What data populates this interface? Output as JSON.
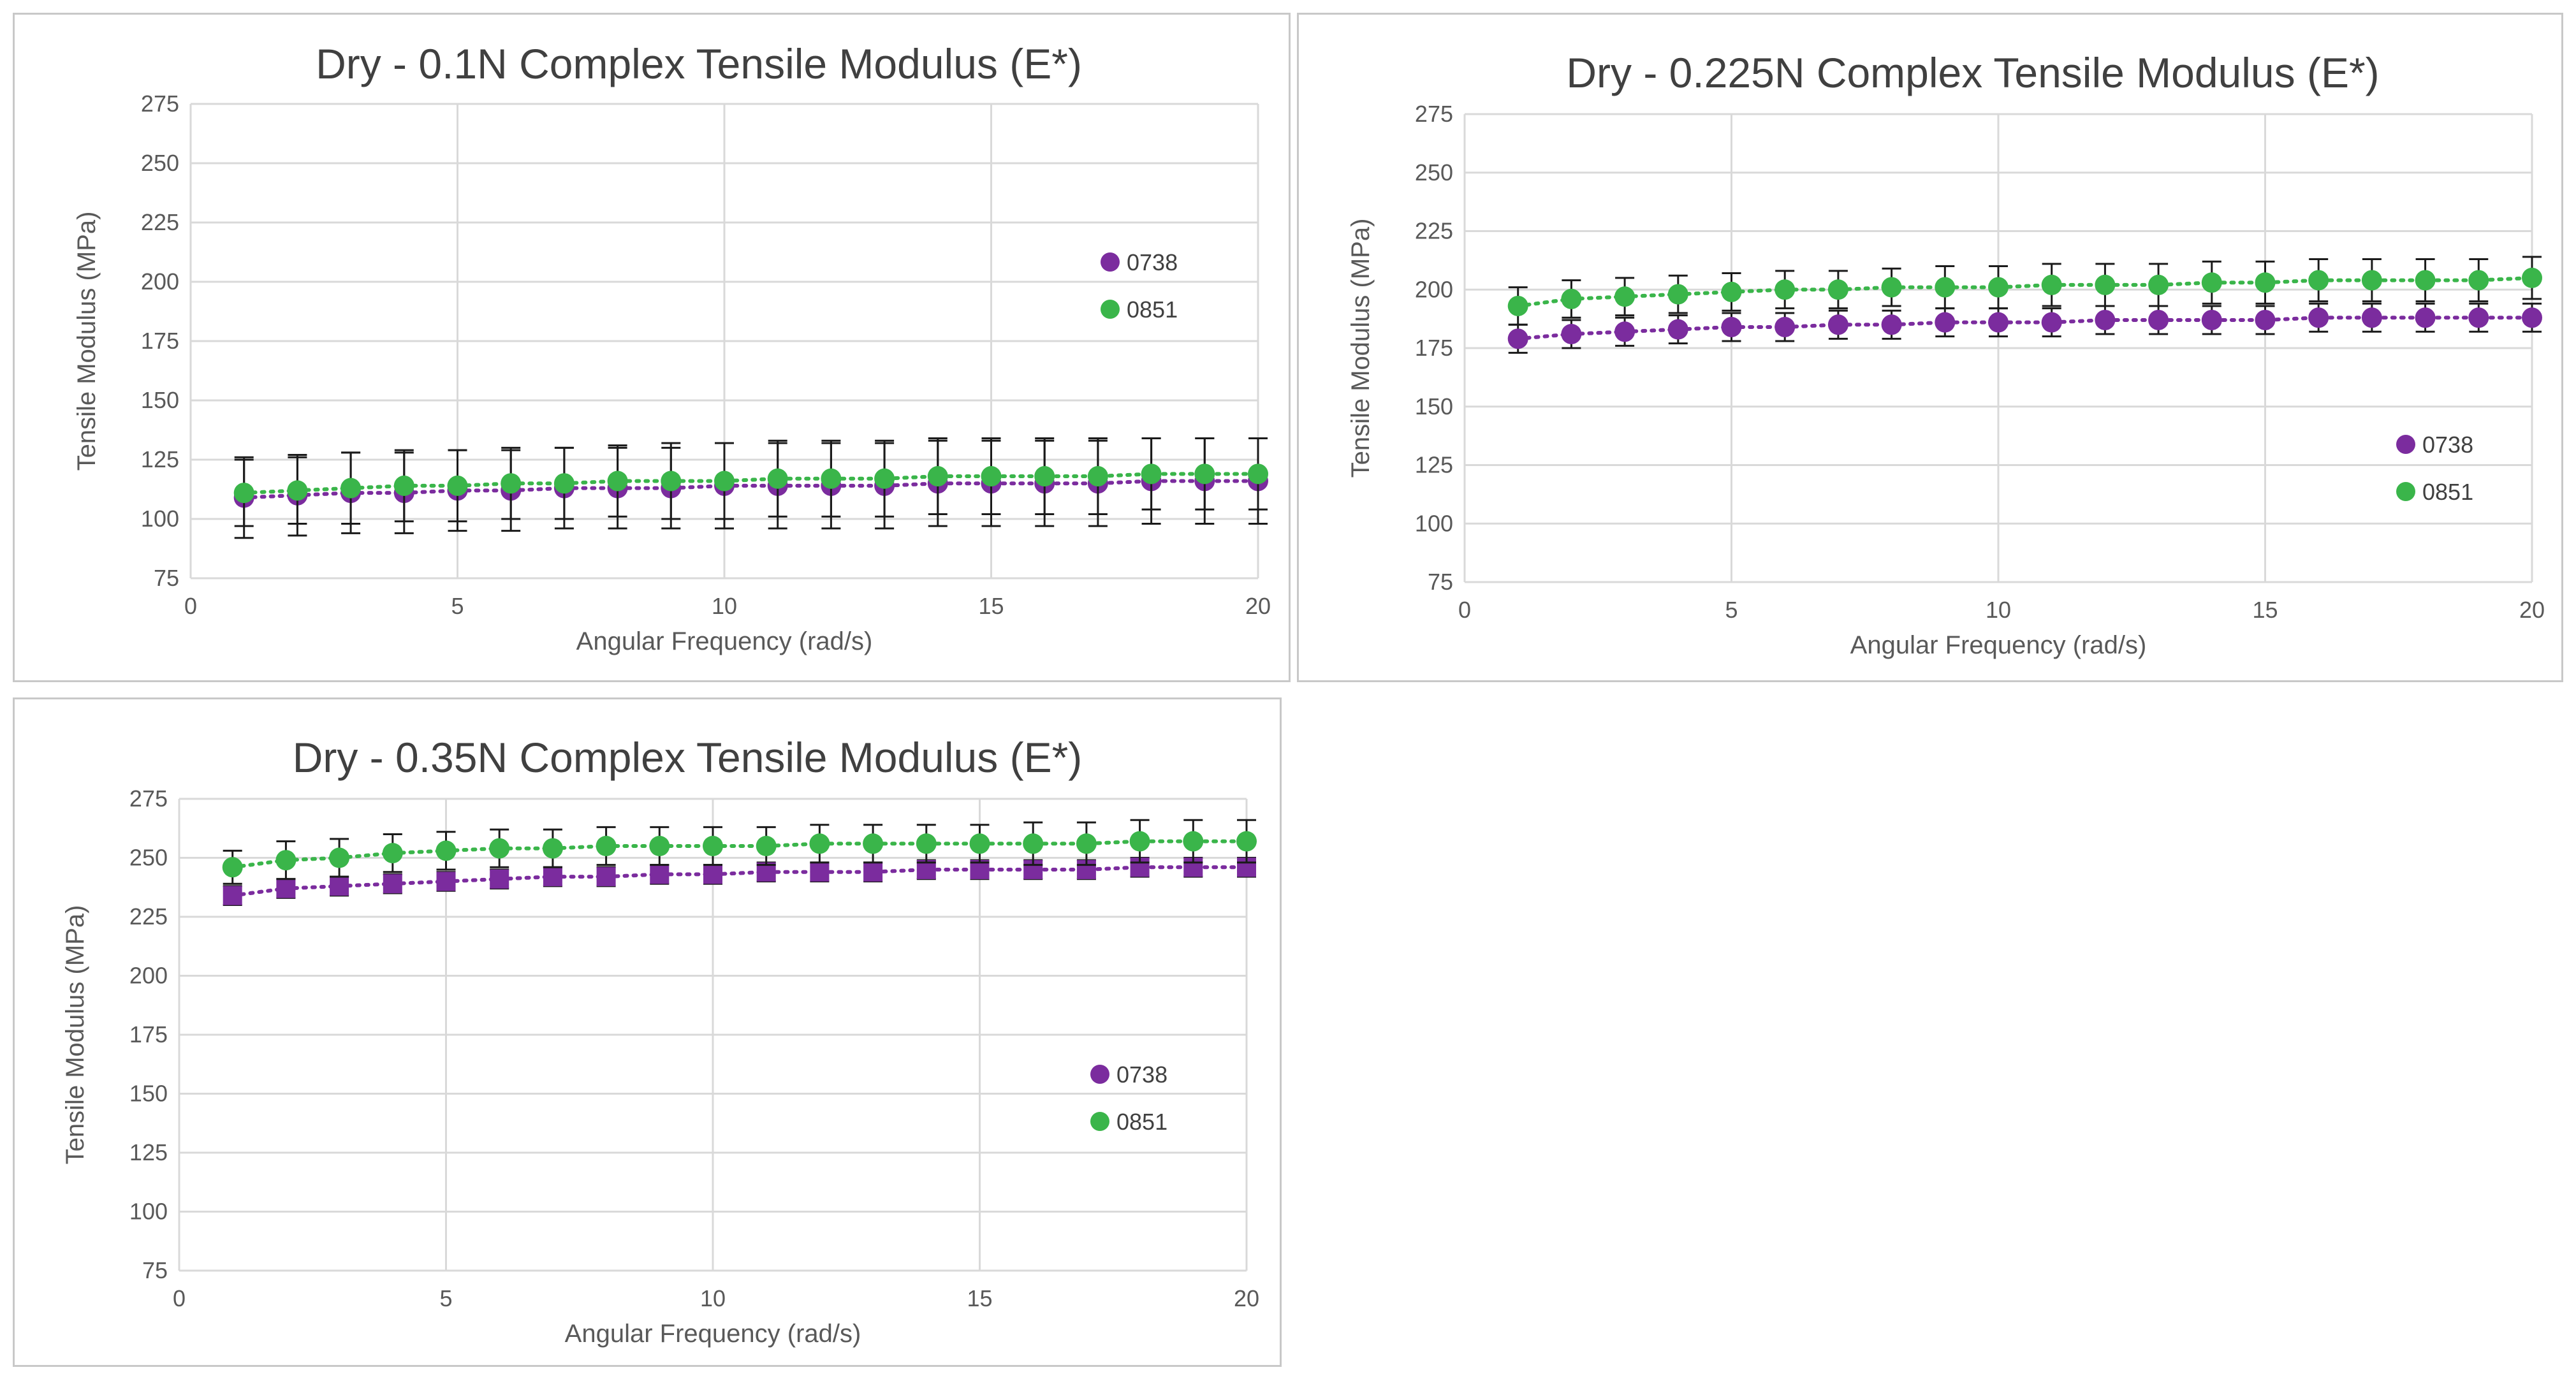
{
  "colors": {
    "s0738": "#7b2c9e",
    "s0851": "#3ab54a",
    "grid": "#d9d9d9",
    "err": "#1a1a1a"
  },
  "charts": [
    {
      "type": "scatter",
      "title": "Dry - 0.1N Complex Tensile Modulus (E*)",
      "xlabel": "Angular Frequency (rad/s)",
      "ylabel": "Tensile Modulus (MPa)",
      "xlim": [
        0,
        20
      ],
      "ylim": [
        75,
        275
      ],
      "xticks": [
        0,
        5,
        10,
        15,
        20
      ],
      "yticks": [
        75,
        100,
        125,
        150,
        175,
        200,
        225,
        250,
        275
      ],
      "legend_position": "right-middle",
      "x": [
        1,
        2,
        3,
        4,
        5,
        6,
        7,
        8,
        9,
        10,
        11,
        12,
        13,
        14,
        15,
        16,
        17,
        18,
        19,
        20
      ],
      "series": [
        {
          "name": "0738",
          "marker": "circle",
          "values": [
            109,
            110,
            111,
            111,
            112,
            112,
            113,
            113,
            113,
            114,
            114,
            114,
            114,
            115,
            115,
            115,
            115,
            116,
            116,
            116
          ],
          "error": [
            17,
            17,
            17,
            17,
            17,
            17,
            17,
            17,
            17,
            18,
            18,
            18,
            18,
            18,
            18,
            18,
            18,
            18,
            18,
            18
          ]
        },
        {
          "name": "0851",
          "marker": "circle",
          "values": [
            111,
            112,
            113,
            114,
            114,
            115,
            115,
            116,
            116,
            116,
            117,
            117,
            117,
            118,
            118,
            118,
            118,
            119,
            119,
            119
          ],
          "error": [
            14,
            14,
            15,
            15,
            15,
            15,
            15,
            15,
            16,
            16,
            16,
            16,
            16,
            16,
            16,
            16,
            16,
            15,
            15,
            15
          ]
        }
      ]
    },
    {
      "type": "scatter",
      "title": "Dry - 0.225N Complex Tensile Modulus (E*)",
      "xlabel": "Angular Frequency (rad/s)",
      "ylabel": "Tensile Modulus (MPa)",
      "xlim": [
        0,
        20
      ],
      "ylim": [
        75,
        275
      ],
      "xticks": [
        0,
        5,
        10,
        15,
        20
      ],
      "yticks": [
        75,
        100,
        125,
        150,
        175,
        200,
        225,
        250,
        275
      ],
      "legend_position": "right-bottom",
      "x": [
        1,
        2,
        3,
        4,
        5,
        6,
        7,
        8,
        9,
        10,
        11,
        12,
        13,
        14,
        15,
        16,
        17,
        18,
        19,
        20
      ],
      "series": [
        {
          "name": "0738",
          "marker": "circle",
          "values": [
            179,
            181,
            182,
            183,
            184,
            184,
            185,
            185,
            186,
            186,
            186,
            187,
            187,
            187,
            187,
            188,
            188,
            188,
            188,
            188
          ],
          "error": [
            6,
            6,
            6,
            6,
            6,
            6,
            6,
            6,
            6,
            6,
            6,
            6,
            6,
            6,
            6,
            6,
            6,
            6,
            6,
            6
          ]
        },
        {
          "name": "0851",
          "marker": "circle",
          "values": [
            193,
            196,
            197,
            198,
            199,
            200,
            200,
            201,
            201,
            201,
            202,
            202,
            202,
            203,
            203,
            204,
            204,
            204,
            204,
            205
          ],
          "error": [
            8,
            8,
            8,
            8,
            8,
            8,
            8,
            8,
            9,
            9,
            9,
            9,
            9,
            9,
            9,
            9,
            9,
            9,
            9,
            9
          ]
        }
      ]
    },
    {
      "type": "scatter",
      "title": "Dry - 0.35N Complex Tensile Modulus (E*)",
      "xlabel": "Angular Frequency (rad/s)",
      "ylabel": "Tensile Modulus (MPa)",
      "xlim": [
        0,
        20
      ],
      "ylim": [
        75,
        275
      ],
      "xticks": [
        0,
        5,
        10,
        15,
        20
      ],
      "yticks": [
        75,
        100,
        125,
        150,
        175,
        200,
        225,
        250,
        275
      ],
      "legend_position": "right-bottom",
      "x": [
        1,
        2,
        3,
        4,
        5,
        6,
        7,
        8,
        9,
        10,
        11,
        12,
        13,
        14,
        15,
        16,
        17,
        18,
        19,
        20
      ],
      "series": [
        {
          "name": "0738",
          "marker": "square",
          "values": [
            234,
            237,
            238,
            239,
            240,
            241,
            242,
            242,
            243,
            243,
            244,
            244,
            244,
            245,
            245,
            245,
            245,
            246,
            246,
            246
          ],
          "error": [
            4,
            4,
            4,
            4,
            4,
            4,
            4,
            4,
            4,
            4,
            4,
            4,
            4,
            4,
            4,
            4,
            4,
            4,
            4,
            4
          ]
        },
        {
          "name": "0851",
          "marker": "circle",
          "values": [
            246,
            249,
            250,
            252,
            253,
            254,
            254,
            255,
            255,
            255,
            255,
            256,
            256,
            256,
            256,
            256,
            256,
            257,
            257,
            257
          ],
          "error": [
            7,
            8,
            8,
            8,
            8,
            8,
            8,
            8,
            8,
            8,
            8,
            8,
            8,
            8,
            8,
            9,
            9,
            9,
            9,
            9
          ]
        }
      ]
    }
  ]
}
